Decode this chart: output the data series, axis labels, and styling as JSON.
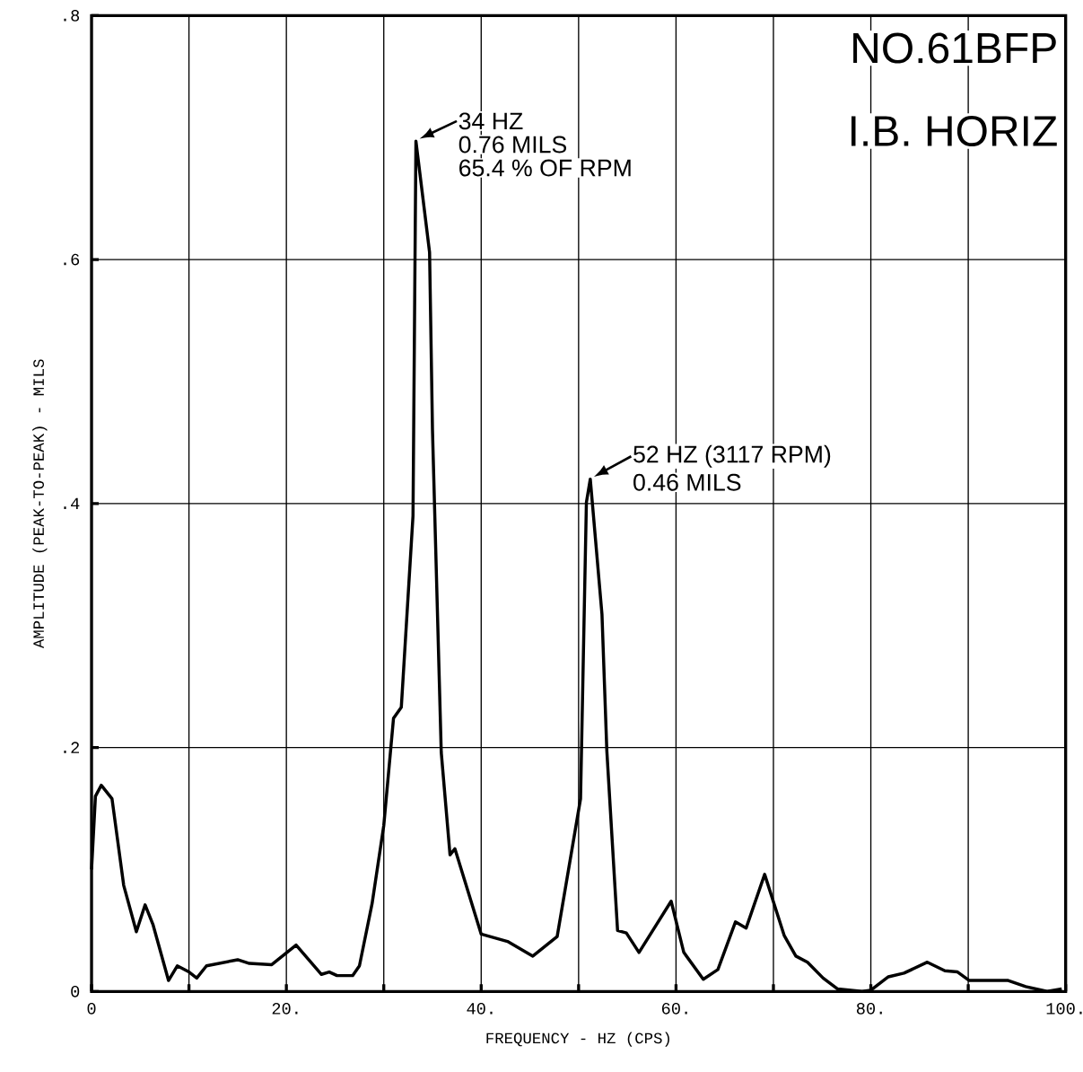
{
  "chart_data": {
    "type": "line",
    "xlabel": "FREQUENCY - HZ (CPS)",
    "ylabel": "AMPLITUDE (PEAK-TO-PEAK) - MILS",
    "x": [
      0,
      0.4,
      1.0,
      2.1,
      3.3,
      4.6,
      5.5,
      6.3,
      7.9,
      8.8,
      10.0,
      10.8,
      11.8,
      15.0,
      16.2,
      18.5,
      21.0,
      23.6,
      24.4,
      25.2,
      26.8,
      27.5,
      28.8,
      30.0,
      31.0,
      31.8,
      33.0,
      33.3,
      34.7,
      35.0,
      35.9,
      36.8,
      37.3,
      40.0,
      42.7,
      45.3,
      47.8,
      50.2,
      50.8,
      51.2,
      52.4,
      52.9,
      54.0,
      54.9,
      56.2,
      59.5,
      60.8,
      62.8,
      64.3,
      66.1,
      67.2,
      69.1,
      71.1,
      72.3,
      73.5,
      75.1,
      76.6,
      79.1,
      80.0,
      81.8,
      83.4,
      85.8,
      87.6,
      88.9,
      90.1,
      92.6,
      94.1,
      95.9,
      98.1,
      99.6
    ],
    "values": [
      0.1,
      0.16,
      0.169,
      0.158,
      0.087,
      0.049,
      0.071,
      0.055,
      0.009,
      0.021,
      0.016,
      0.011,
      0.021,
      0.026,
      0.023,
      0.022,
      0.038,
      0.014,
      0.016,
      0.013,
      0.013,
      0.021,
      0.072,
      0.136,
      0.224,
      0.233,
      0.39,
      0.697,
      0.606,
      0.46,
      0.196,
      0.112,
      0.117,
      0.047,
      0.041,
      0.029,
      0.045,
      0.158,
      0.401,
      0.42,
      0.309,
      0.197,
      0.05,
      0.048,
      0.032,
      0.074,
      0.032,
      0.01,
      0.018,
      0.057,
      0.052,
      0.096,
      0.046,
      0.029,
      0.024,
      0.011,
      0.002,
      0.0,
      0.001,
      0.012,
      0.015,
      0.024,
      0.017,
      0.016,
      0.009,
      0.009,
      0.009,
      0.004,
      0.0,
      0.002
    ],
    "color": "#000000",
    "xlim": [
      0,
      100
    ],
    "ylim": [
      0,
      0.8
    ],
    "xticks": [
      0,
      {
        "value": 10,
        "label": null
      },
      {
        "value": 20,
        "label": "20."
      },
      {
        "value": 30,
        "label": null
      },
      {
        "value": 40,
        "label": "40."
      },
      {
        "value": 50,
        "label": null
      },
      {
        "value": 60,
        "label": "60."
      },
      {
        "value": 70,
        "label": null
      },
      {
        "value": 80,
        "label": "80."
      },
      {
        "value": 90,
        "label": null
      },
      {
        "value": 100,
        "label": "100."
      }
    ],
    "yticks": [
      0,
      {
        "value": 0.2,
        "label": ".2"
      },
      {
        "value": 0.4,
        "label": ".4"
      },
      {
        "value": 0.6,
        "label": ".6"
      },
      {
        "value": 0.8,
        "label": ".8"
      }
    ],
    "grid": true,
    "annotations": [
      "NO.61BFP",
      "I.B. HORIZ",
      {
        "text": "34 HZ",
        "x": 33.3,
        "y": 0.697
      },
      "0.76 MILS",
      "65.4 % OF RPM",
      {
        "text": "52 HZ (3117 RPM)",
        "x": 51.2,
        "y": 0.42
      },
      "0.46 MILS"
    ]
  }
}
